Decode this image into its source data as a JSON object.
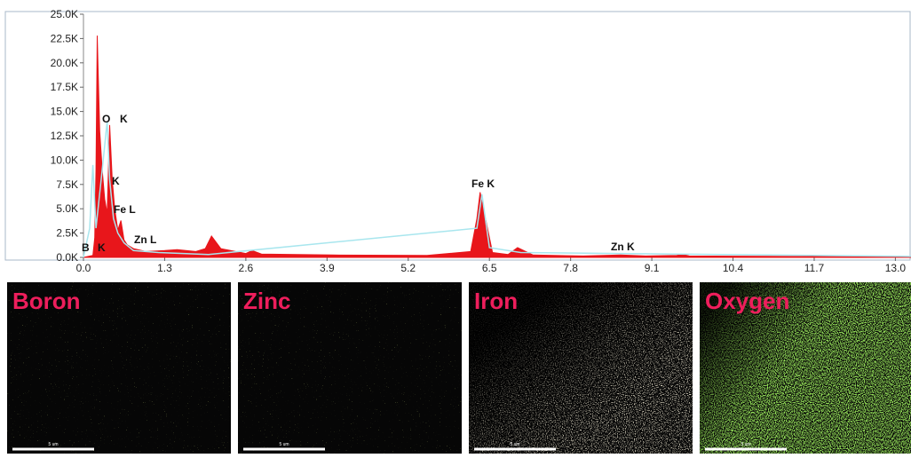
{
  "chart_data": {
    "type": "area",
    "xlim": [
      0,
      13.25
    ],
    "ylim": [
      0,
      25000
    ],
    "xticks": [
      {
        "value": 0,
        "label": "0.0"
      },
      1.3,
      2.6,
      3.9,
      5.2,
      6.5,
      7.8,
      9.1,
      10.4,
      11.7,
      {
        "value": 13,
        "label": "13.0"
      }
    ],
    "yticks": [
      {
        "value": 0,
        "label": "0.0K"
      },
      {
        "value": 2500,
        "label": "2.5K"
      },
      {
        "value": 5000,
        "label": "5.0K"
      },
      {
        "value": 7500,
        "label": "7.5K"
      },
      {
        "value": 10000,
        "label": "10.0K"
      },
      {
        "value": 12500,
        "label": "12.5K"
      },
      {
        "value": 15000,
        "label": "15.0K"
      },
      {
        "value": 17500,
        "label": "17.5K"
      },
      {
        "value": 20000,
        "label": "20.0K"
      },
      {
        "value": 22500,
        "label": "22.5K"
      },
      {
        "value": 25000,
        "label": "25.0K"
      }
    ],
    "series": [
      {
        "color": "#e8161b",
        "x": [
          0,
          0.15,
          0.18,
          0.2,
          0.22,
          0.26,
          0.3,
          0.34,
          0.38,
          0.42,
          0.46,
          0.5,
          0.55,
          0.6,
          0.65,
          0.7,
          0.8,
          1.0,
          1.3,
          1.5,
          1.8,
          1.95,
          2.05,
          2.2,
          2.6,
          2.7,
          2.85,
          4.0,
          5.5,
          6.2,
          6.3,
          6.35,
          6.42,
          6.55,
          6.8,
          6.95,
          7.05,
          7.2,
          8.0,
          8.6,
          9.0,
          9.5,
          9.6,
          9.7,
          13.25
        ],
        "values": [
          0,
          200,
          2000,
          9000,
          22800,
          13000,
          9000,
          6000,
          4500,
          13600,
          8000,
          5000,
          2800,
          3800,
          1800,
          1300,
          900,
          600,
          700,
          800,
          600,
          900,
          2200,
          900,
          400,
          700,
          350,
          250,
          200,
          600,
          4000,
          6700,
          4500,
          500,
          300,
          1000,
          700,
          250,
          150,
          250,
          150,
          200,
          300,
          150,
          50
        ]
      },
      {
        "color": "#a8e6ee",
        "x": [
          0,
          0.1,
          0.15,
          0.2,
          0.25,
          0.3,
          0.38,
          0.42,
          0.48,
          0.55,
          0.65,
          0.8,
          1.2,
          2.0,
          6.3,
          6.38,
          6.5,
          7.0,
          13.25
        ],
        "values": [
          0,
          3000,
          9500,
          3000,
          6000,
          9000,
          14000,
          8000,
          4000,
          2500,
          1500,
          700,
          500,
          300,
          3000,
          6500,
          1000,
          500,
          100
        ]
      }
    ],
    "annotations": [
      "B",
      "K",
      "O",
      "K",
      "K",
      "Fe L",
      "Zn L",
      "Fe K",
      "Zn K"
    ]
  },
  "maps": [
    {
      "title": "Boron",
      "scale": "5 um"
    },
    {
      "title": "Zinc",
      "scale": "5 um"
    },
    {
      "title": "Iron",
      "scale": "5 um"
    },
    {
      "title": "Oxygen",
      "scale": "5 um"
    }
  ]
}
